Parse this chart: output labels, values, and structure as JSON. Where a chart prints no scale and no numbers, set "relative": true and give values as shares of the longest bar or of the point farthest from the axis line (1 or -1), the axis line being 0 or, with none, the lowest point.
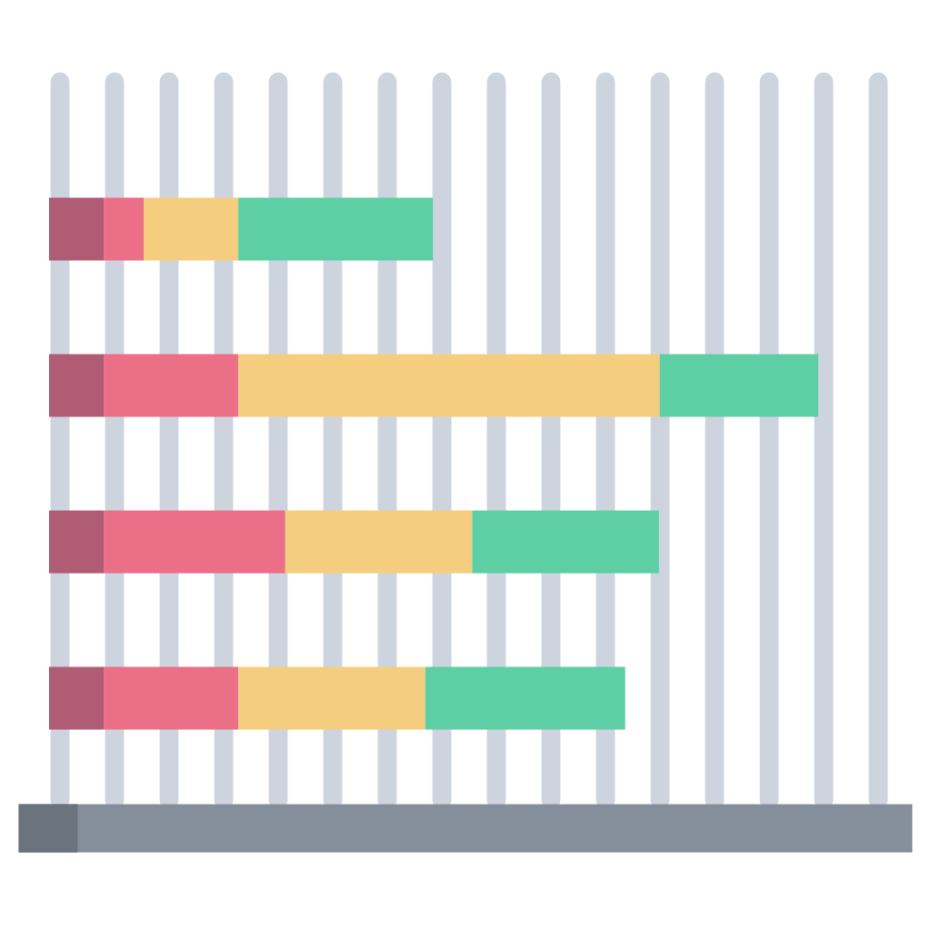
{
  "chart_data": {
    "type": "bar",
    "orientation": "horizontal",
    "stacked": true,
    "relative": true,
    "grid": "x",
    "categories": [
      null,
      null,
      null,
      null
    ],
    "series": [
      {
        "color": "#b05c74",
        "values": [
          0.071,
          0.071,
          0.071,
          0.071
        ]
      },
      {
        "color": "#ea6f87",
        "values": [
          0.052,
          0.175,
          0.236,
          0.175
        ]
      },
      {
        "color": "#f4ce7e",
        "values": [
          0.123,
          0.548,
          0.243,
          0.243
        ]
      },
      {
        "color": "#5ecfa4",
        "values": [
          0.253,
          0.206,
          0.243,
          0.26
        ]
      }
    ]
  }
}
